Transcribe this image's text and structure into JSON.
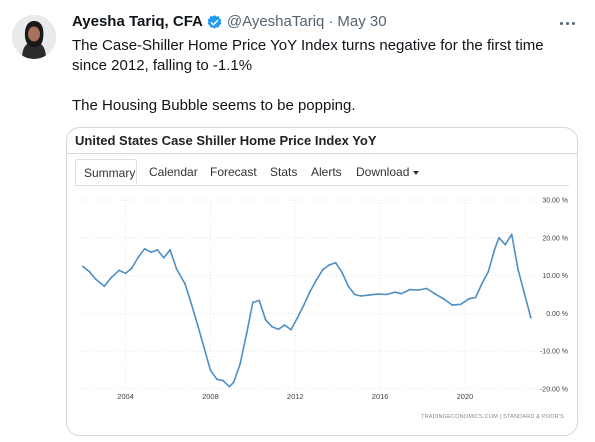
{
  "tweet": {
    "author_name": "Ayesha Tariq, CFA",
    "handle": "@AyeshaTariq",
    "separator": "·",
    "date": "May 30",
    "verified_color": "#1d9bf0",
    "paragraphs": [
      "The Case-Shiller Home Price YoY Index turns negative for the first time since 2012, falling to -1.1%",
      "The Housing Bubble seems to be popping."
    ]
  },
  "icons": [
    "avatar",
    "verified-badge-icon",
    "more-options-icon"
  ],
  "card": {
    "title": "United States Case Shiller Home Price Index YoY",
    "tabs": [
      {
        "label": "Summary",
        "active": true
      },
      {
        "label": "Calendar",
        "active": false
      },
      {
        "label": "Forecast",
        "active": false
      },
      {
        "label": "Stats",
        "active": false
      },
      {
        "label": "Alerts",
        "active": false
      },
      {
        "label": "Download",
        "active": false,
        "dropdown": true
      }
    ],
    "source": "TRADINGECONOMICS.COM | STANDARD & POOR'S"
  },
  "chart_data": {
    "type": "line",
    "title": "United States Case Shiller Home Price Index YoY",
    "xlabel": "",
    "ylabel": "",
    "x_ticks": [
      "2004",
      "2008",
      "2012",
      "2016",
      "2020"
    ],
    "y_ticks": [
      "30.00 %",
      "20.00 %",
      "10.00 %",
      "0.00 %",
      "-10.00 %",
      "-20.00 %"
    ],
    "ylim": [
      -20,
      30
    ],
    "xlim": [
      2001.9,
      2023.3
    ],
    "grid": true,
    "line_color": "#4f8fc4",
    "series": [
      {
        "x": [
          2002.0,
          2002.3,
          2002.6,
          2003.0,
          2003.3,
          2003.7,
          2004.0,
          2004.3,
          2004.6,
          2004.9,
          2005.2,
          2005.5,
          2005.8,
          2006.1,
          2006.4,
          2006.8,
          2007.1,
          2007.4,
          2007.7,
          2008.0,
          2008.3,
          2008.6,
          2008.9,
          2009.1,
          2009.4,
          2009.7,
          2010.0,
          2010.3,
          2010.6,
          2010.9,
          2011.2,
          2011.5,
          2011.8,
          2012.1,
          2012.4,
          2012.7,
          2013.0,
          2013.3,
          2013.6,
          2013.9,
          2014.2,
          2014.5,
          2014.8,
          2015.1,
          2015.5,
          2015.9,
          2016.3,
          2016.7,
          2017.0,
          2017.4,
          2017.8,
          2018.2,
          2018.6,
          2019.0,
          2019.4,
          2019.8,
          2020.2,
          2020.5,
          2020.8,
          2021.1,
          2021.4,
          2021.6,
          2021.9,
          2022.2,
          2022.5,
          2022.8,
          2023.1
        ],
        "values": [
          12.4,
          11.0,
          9.0,
          7.2,
          9.3,
          11.4,
          10.6,
          12.0,
          14.9,
          17.1,
          16.2,
          16.8,
          14.7,
          16.8,
          11.8,
          7.8,
          2.6,
          -3.1,
          -9.0,
          -15.0,
          -17.4,
          -17.8,
          -19.4,
          -18.2,
          -13.4,
          -5.5,
          2.9,
          3.4,
          -1.7,
          -3.5,
          -4.2,
          -3.1,
          -4.3,
          -1.2,
          2.2,
          5.8,
          8.9,
          11.6,
          12.8,
          13.4,
          10.9,
          7.2,
          5.0,
          4.6,
          4.9,
          5.1,
          5.0,
          5.6,
          5.2,
          6.3,
          6.2,
          6.6,
          5.1,
          3.8,
          2.2,
          2.4,
          3.9,
          4.2,
          7.9,
          11.0,
          17.0,
          20.0,
          18.2,
          20.9,
          11.7,
          5.3,
          -1.1
        ]
      }
    ]
  }
}
